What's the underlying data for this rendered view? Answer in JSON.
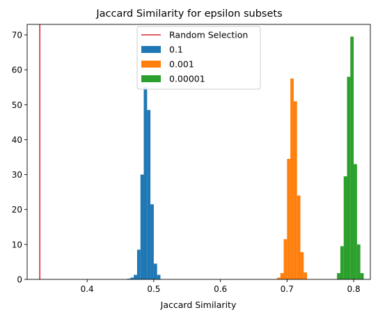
{
  "chart_data": {
    "type": "bar",
    "title": "Jaccard Similarity for epsilon subsets",
    "xlabel": "Jaccard Similarity",
    "ylabel": "",
    "xlim": [
      0.31,
      0.825
    ],
    "ylim": [
      0,
      73
    ],
    "x_ticks": [
      0.4,
      0.5,
      0.6,
      0.7,
      0.8
    ],
    "x_tick_labels": [
      "0.4",
      "0.5",
      "0.6",
      "0.7",
      "0.8"
    ],
    "y_ticks": [
      0,
      10,
      20,
      30,
      40,
      50,
      60,
      70
    ],
    "y_tick_labels": [
      "0",
      "10",
      "20",
      "30",
      "40",
      "50",
      "60",
      "70"
    ],
    "grid": false,
    "legend_position": "top-center",
    "bin_width": 0.005,
    "random_selection": {
      "label": "Random Selection",
      "x": 0.329,
      "color": "#d62728"
    },
    "series": [
      {
        "name": "0.1",
        "color": "#1f77b4",
        "bins": [
          {
            "x": 0.46,
            "v": 0.2
          },
          {
            "x": 0.465,
            "v": 0.5
          },
          {
            "x": 0.47,
            "v": 1.3
          },
          {
            "x": 0.475,
            "v": 8.5
          },
          {
            "x": 0.48,
            "v": 30
          },
          {
            "x": 0.485,
            "v": 55
          },
          {
            "x": 0.49,
            "v": 48.5
          },
          {
            "x": 0.495,
            "v": 21.5
          },
          {
            "x": 0.5,
            "v": 4.5
          },
          {
            "x": 0.505,
            "v": 1.3
          }
        ]
      },
      {
        "name": "0.001",
        "color": "#ff7f0e",
        "bins": [
          {
            "x": 0.685,
            "v": 0.5
          },
          {
            "x": 0.69,
            "v": 1.8
          },
          {
            "x": 0.695,
            "v": 11.5
          },
          {
            "x": 0.7,
            "v": 34.5
          },
          {
            "x": 0.705,
            "v": 57.5
          },
          {
            "x": 0.71,
            "v": 51
          },
          {
            "x": 0.715,
            "v": 24
          },
          {
            "x": 0.72,
            "v": 7.8
          },
          {
            "x": 0.725,
            "v": 2
          }
        ]
      },
      {
        "name": "0.00001",
        "color": "#2ca02c",
        "bins": [
          {
            "x": 0.775,
            "v": 1.8
          },
          {
            "x": 0.78,
            "v": 9.5
          },
          {
            "x": 0.785,
            "v": 29.5
          },
          {
            "x": 0.79,
            "v": 58
          },
          {
            "x": 0.795,
            "v": 69.5
          },
          {
            "x": 0.8,
            "v": 33
          },
          {
            "x": 0.805,
            "v": 10
          },
          {
            "x": 0.81,
            "v": 1.8
          }
        ]
      }
    ]
  }
}
